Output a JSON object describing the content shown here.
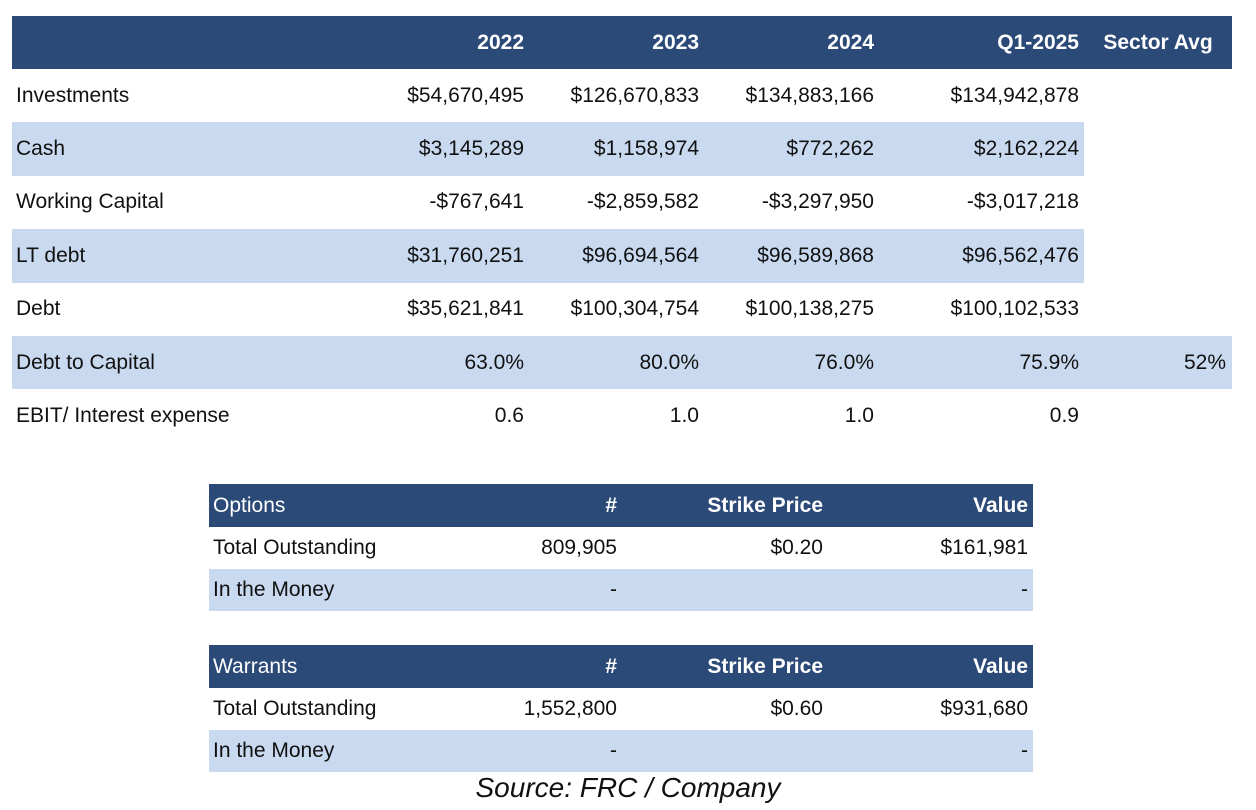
{
  "main_table": {
    "headers": [
      "",
      "2022",
      "2023",
      "2024",
      "Q1-2025",
      "Sector Avg"
    ],
    "rows": [
      {
        "label": "Investments",
        "values": [
          "$54,670,495",
          "$126,670,833",
          "$134,883,166",
          "$134,942,878",
          ""
        ],
        "shaded": false
      },
      {
        "label": "Cash",
        "values": [
          "$3,145,289",
          "$1,158,974",
          "$772,262",
          "$2,162,224",
          ""
        ],
        "shaded": true
      },
      {
        "label": "Working Capital",
        "values": [
          "-$767,641",
          "-$2,859,582",
          "-$3,297,950",
          "-$3,017,218",
          ""
        ],
        "shaded": false
      },
      {
        "label": "LT debt",
        "values": [
          "$31,760,251",
          "$96,694,564",
          "$96,589,868",
          "$96,562,476",
          ""
        ],
        "shaded": true
      },
      {
        "label": "Debt",
        "values": [
          "$35,621,841",
          "$100,304,754",
          "$100,138,275",
          "$100,102,533",
          ""
        ],
        "shaded": false
      },
      {
        "label": "Debt to Capital",
        "values": [
          "63.0%",
          "80.0%",
          "76.0%",
          "75.9%",
          "52%"
        ],
        "shaded": true
      },
      {
        "label": "EBIT/ Interest expense",
        "values": [
          "0.6",
          "1.0",
          "1.0",
          "0.9",
          ""
        ],
        "shaded": false
      }
    ]
  },
  "options_table": {
    "headers": [
      "Options",
      "#",
      "Strike Price",
      "Value"
    ],
    "rows": [
      {
        "label": "Total Outstanding",
        "values": [
          "809,905",
          "$0.20",
          "$161,981"
        ]
      },
      {
        "label": "In the Money",
        "values": [
          "-",
          "",
          "-"
        ]
      }
    ]
  },
  "warrants_table": {
    "headers": [
      "Warrants",
      "#",
      "Strike Price",
      "Value"
    ],
    "rows": [
      {
        "label": "Total Outstanding",
        "values": [
          "1,552,800",
          "$0.60",
          "$931,680"
        ]
      },
      {
        "label": "In the Money",
        "values": [
          "-",
          "",
          "-"
        ]
      }
    ]
  },
  "source": "Source: FRC / Company",
  "colors": {
    "header_bg": "#2b4a78",
    "shade_bg": "#c9d9ef",
    "header_text": "#ffffff"
  }
}
